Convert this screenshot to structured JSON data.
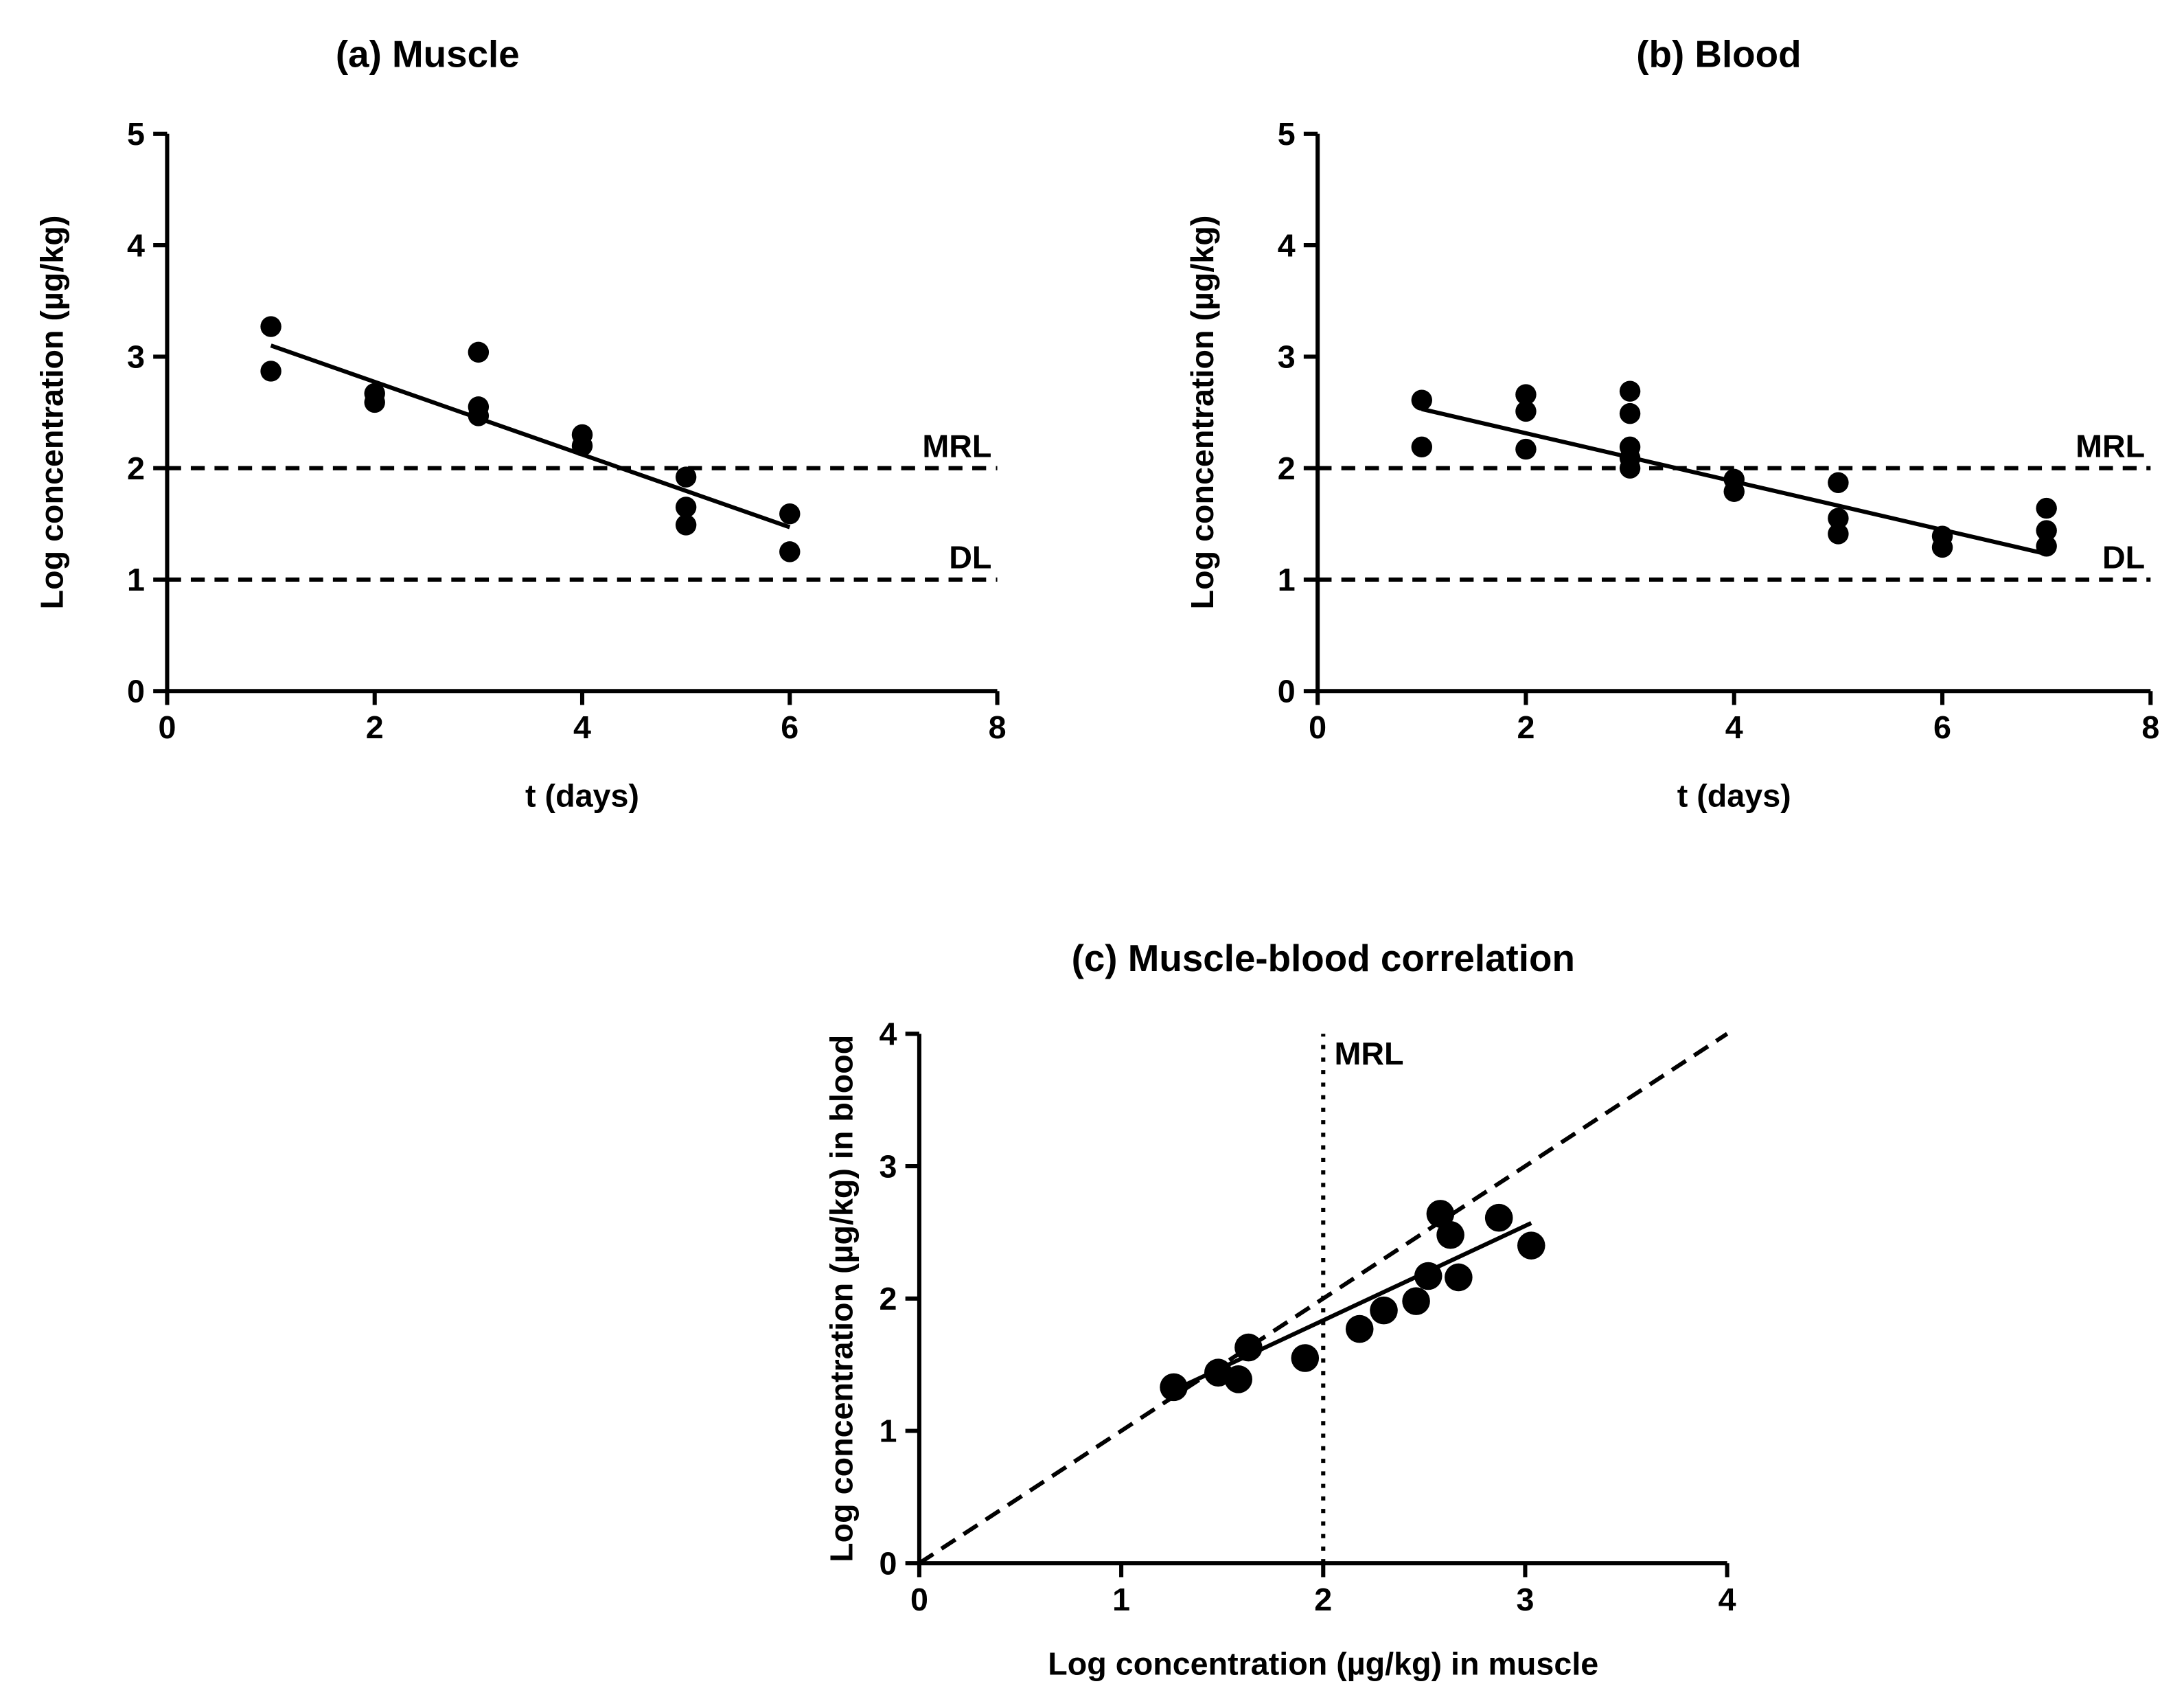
{
  "chart_data": [
    {
      "type": "scatter",
      "title": "(a) Muscle",
      "xlabel": "t (days)",
      "ylabel": "Log concentration (µg/kg)",
      "xlim": [
        0,
        8
      ],
      "ylim": [
        0,
        5
      ],
      "xticks": [
        0,
        2,
        4,
        6,
        8
      ],
      "yticks": [
        0,
        1,
        2,
        3,
        4,
        5
      ],
      "hlines": [
        {
          "label": "MRL",
          "y": 2,
          "style": "dashed"
        },
        {
          "label": "DL",
          "y": 1,
          "style": "dashed"
        }
      ],
      "points": [
        [
          1,
          3.27
        ],
        [
          1,
          2.87
        ],
        [
          2,
          2.67
        ],
        [
          2,
          2.59
        ],
        [
          3,
          3.04
        ],
        [
          3,
          2.55
        ],
        [
          3,
          2.47
        ],
        [
          4,
          2.3
        ],
        [
          4,
          2.2
        ],
        [
          5,
          1.92
        ],
        [
          5,
          1.65
        ],
        [
          5,
          1.49
        ],
        [
          6,
          1.59
        ],
        [
          6,
          1.25
        ]
      ],
      "fit_line": [
        [
          1,
          3.1
        ],
        [
          6,
          1.47
        ]
      ],
      "grid": false
    },
    {
      "type": "scatter",
      "title": "(b) Blood",
      "xlabel": "t (days)",
      "ylabel": "Log concentration (µg/kg)",
      "xlim": [
        0,
        8
      ],
      "ylim": [
        0,
        5
      ],
      "xticks": [
        0,
        2,
        4,
        6,
        8
      ],
      "yticks": [
        0,
        1,
        2,
        3,
        4,
        5
      ],
      "hlines": [
        {
          "label": "MRL",
          "y": 2,
          "style": "dashed"
        },
        {
          "label": "DL",
          "y": 1,
          "style": "dashed"
        }
      ],
      "points": [
        [
          1,
          2.61
        ],
        [
          1,
          2.19
        ],
        [
          2,
          2.66
        ],
        [
          2,
          2.51
        ],
        [
          2,
          2.17
        ],
        [
          3,
          2.69
        ],
        [
          3,
          2.49
        ],
        [
          3,
          2.19
        ],
        [
          3,
          2.09
        ],
        [
          3,
          2.0
        ],
        [
          4,
          1.9
        ],
        [
          4,
          1.79
        ],
        [
          5,
          1.87
        ],
        [
          5,
          1.55
        ],
        [
          5,
          1.41
        ],
        [
          6,
          1.39
        ],
        [
          6,
          1.29
        ],
        [
          7,
          1.64
        ],
        [
          7,
          1.44
        ],
        [
          7,
          1.3
        ]
      ],
      "fit_line": [
        [
          1,
          2.53
        ],
        [
          7,
          1.23
        ]
      ],
      "grid": false
    },
    {
      "type": "scatter",
      "title": "(c) Muscle-blood correlation",
      "xlabel": "Log concentration (µg/kg) in muscle",
      "ylabel": "Log concentration (µg/kg) in blood",
      "xlim": [
        0,
        4
      ],
      "ylim": [
        0,
        4
      ],
      "xticks": [
        0,
        1,
        2,
        3,
        4
      ],
      "yticks": [
        0,
        1,
        2,
        3,
        4
      ],
      "vline": {
        "label": "MRL",
        "x": 2,
        "style": "dotted"
      },
      "identity_line": [
        [
          0,
          0
        ],
        [
          4,
          4
        ]
      ],
      "points": [
        [
          1.26,
          1.33
        ],
        [
          1.48,
          1.44
        ],
        [
          1.58,
          1.39
        ],
        [
          1.63,
          1.63
        ],
        [
          1.91,
          1.55
        ],
        [
          2.18,
          1.77
        ],
        [
          2.3,
          1.91
        ],
        [
          2.46,
          1.98
        ],
        [
          2.52,
          2.17
        ],
        [
          2.67,
          2.16
        ],
        [
          2.58,
          2.64
        ],
        [
          2.63,
          2.48
        ],
        [
          2.87,
          2.61
        ],
        [
          3.03,
          2.4
        ]
      ],
      "fit_line": [
        [
          1.25,
          1.3
        ],
        [
          3.03,
          2.57
        ]
      ],
      "grid": false
    }
  ]
}
